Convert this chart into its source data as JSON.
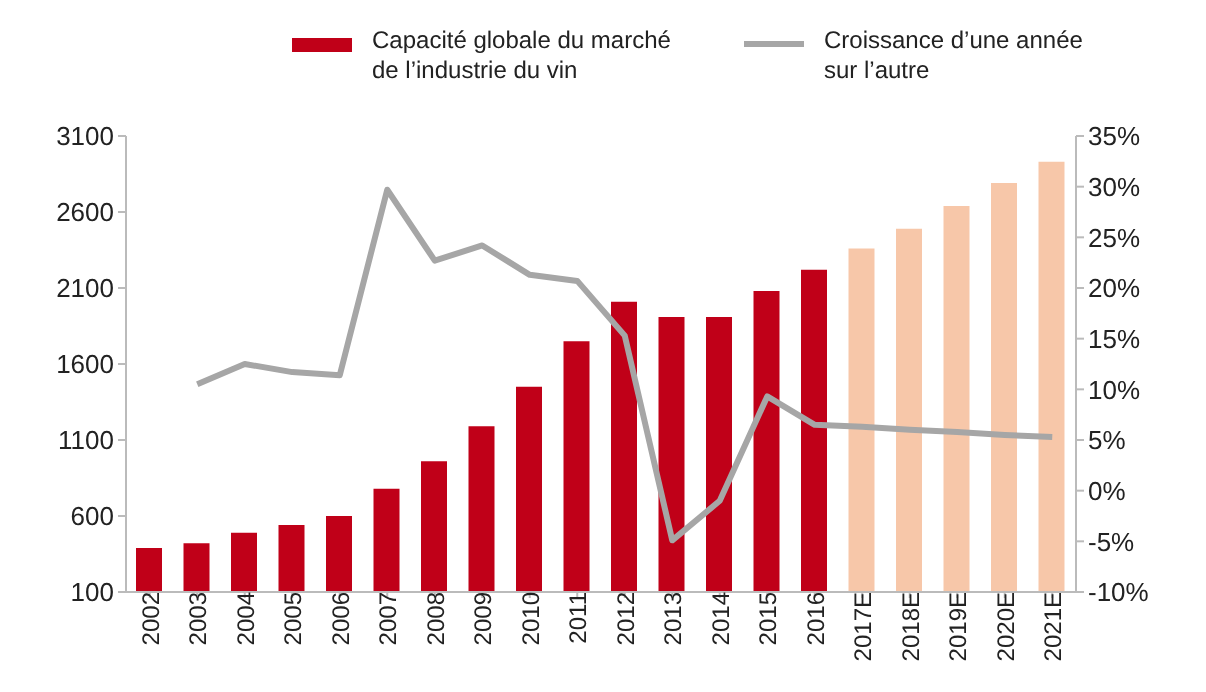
{
  "chart_data": {
    "type": "bar",
    "categories": [
      "2002",
      "2003",
      "2004",
      "2005",
      "2006",
      "2007",
      "2008",
      "2009",
      "2010",
      "2011",
      "2012",
      "2013",
      "2014",
      "2015",
      "2016",
      "2017E",
      "2018E",
      "2019E",
      "2020E",
      "2021E"
    ],
    "series": [
      {
        "name": "Capacité globale du marché de l’industrie du vin",
        "color": "#c00018",
        "colors": [
          "#c00018",
          "#c00018",
          "#c00018",
          "#c00018",
          "#c00018",
          "#c00018",
          "#c00018",
          "#c00018",
          "#c00018",
          "#c00018",
          "#c00018",
          "#c00018",
          "#c00018",
          "#c00018",
          "#c00018",
          "#f7c7a9",
          "#f7c7a9",
          "#f7c7a9",
          "#f7c7a9",
          "#f7c7a9"
        ],
        "values": [
          390,
          420,
          490,
          540,
          600,
          780,
          960,
          1190,
          1450,
          1750,
          2010,
          1910,
          1910,
          2080,
          2220,
          2360,
          2490,
          2640,
          2790,
          2930
        ]
      },
      {
        "name": "Croissance d’une année sur l’autre",
        "type": "line",
        "axis": "y2",
        "color": "#a6a6a6",
        "values": [
          null,
          10.5,
          12.5,
          11.7,
          11.4,
          29.7,
          22.7,
          24.2,
          21.3,
          20.7,
          15.3,
          -4.9,
          -1.0,
          9.3,
          6.5,
          6.3,
          6.0,
          5.8,
          5.5,
          5.3
        ]
      }
    ],
    "ylim": [
      100,
      3100
    ],
    "yticks": [
      100,
      600,
      1100,
      1600,
      2100,
      2600,
      3100
    ],
    "y2lim": [
      -10,
      35
    ],
    "y2ticks": [
      {
        "value": -10,
        "label": "-10%"
      },
      {
        "value": -5,
        "label": "-5%"
      },
      {
        "value": 0,
        "label": "0%"
      },
      {
        "value": 5,
        "label": "5%"
      },
      {
        "value": 10,
        "label": "10%"
      },
      {
        "value": 15,
        "label": "15%"
      },
      {
        "value": 20,
        "label": "20%"
      },
      {
        "value": 25,
        "label": "25%"
      },
      {
        "value": 30,
        "label": "30%"
      },
      {
        "value": 35,
        "label": "35%"
      }
    ],
    "grid": false,
    "legend": "top",
    "marker": "none",
    "line_style": "solid"
  }
}
